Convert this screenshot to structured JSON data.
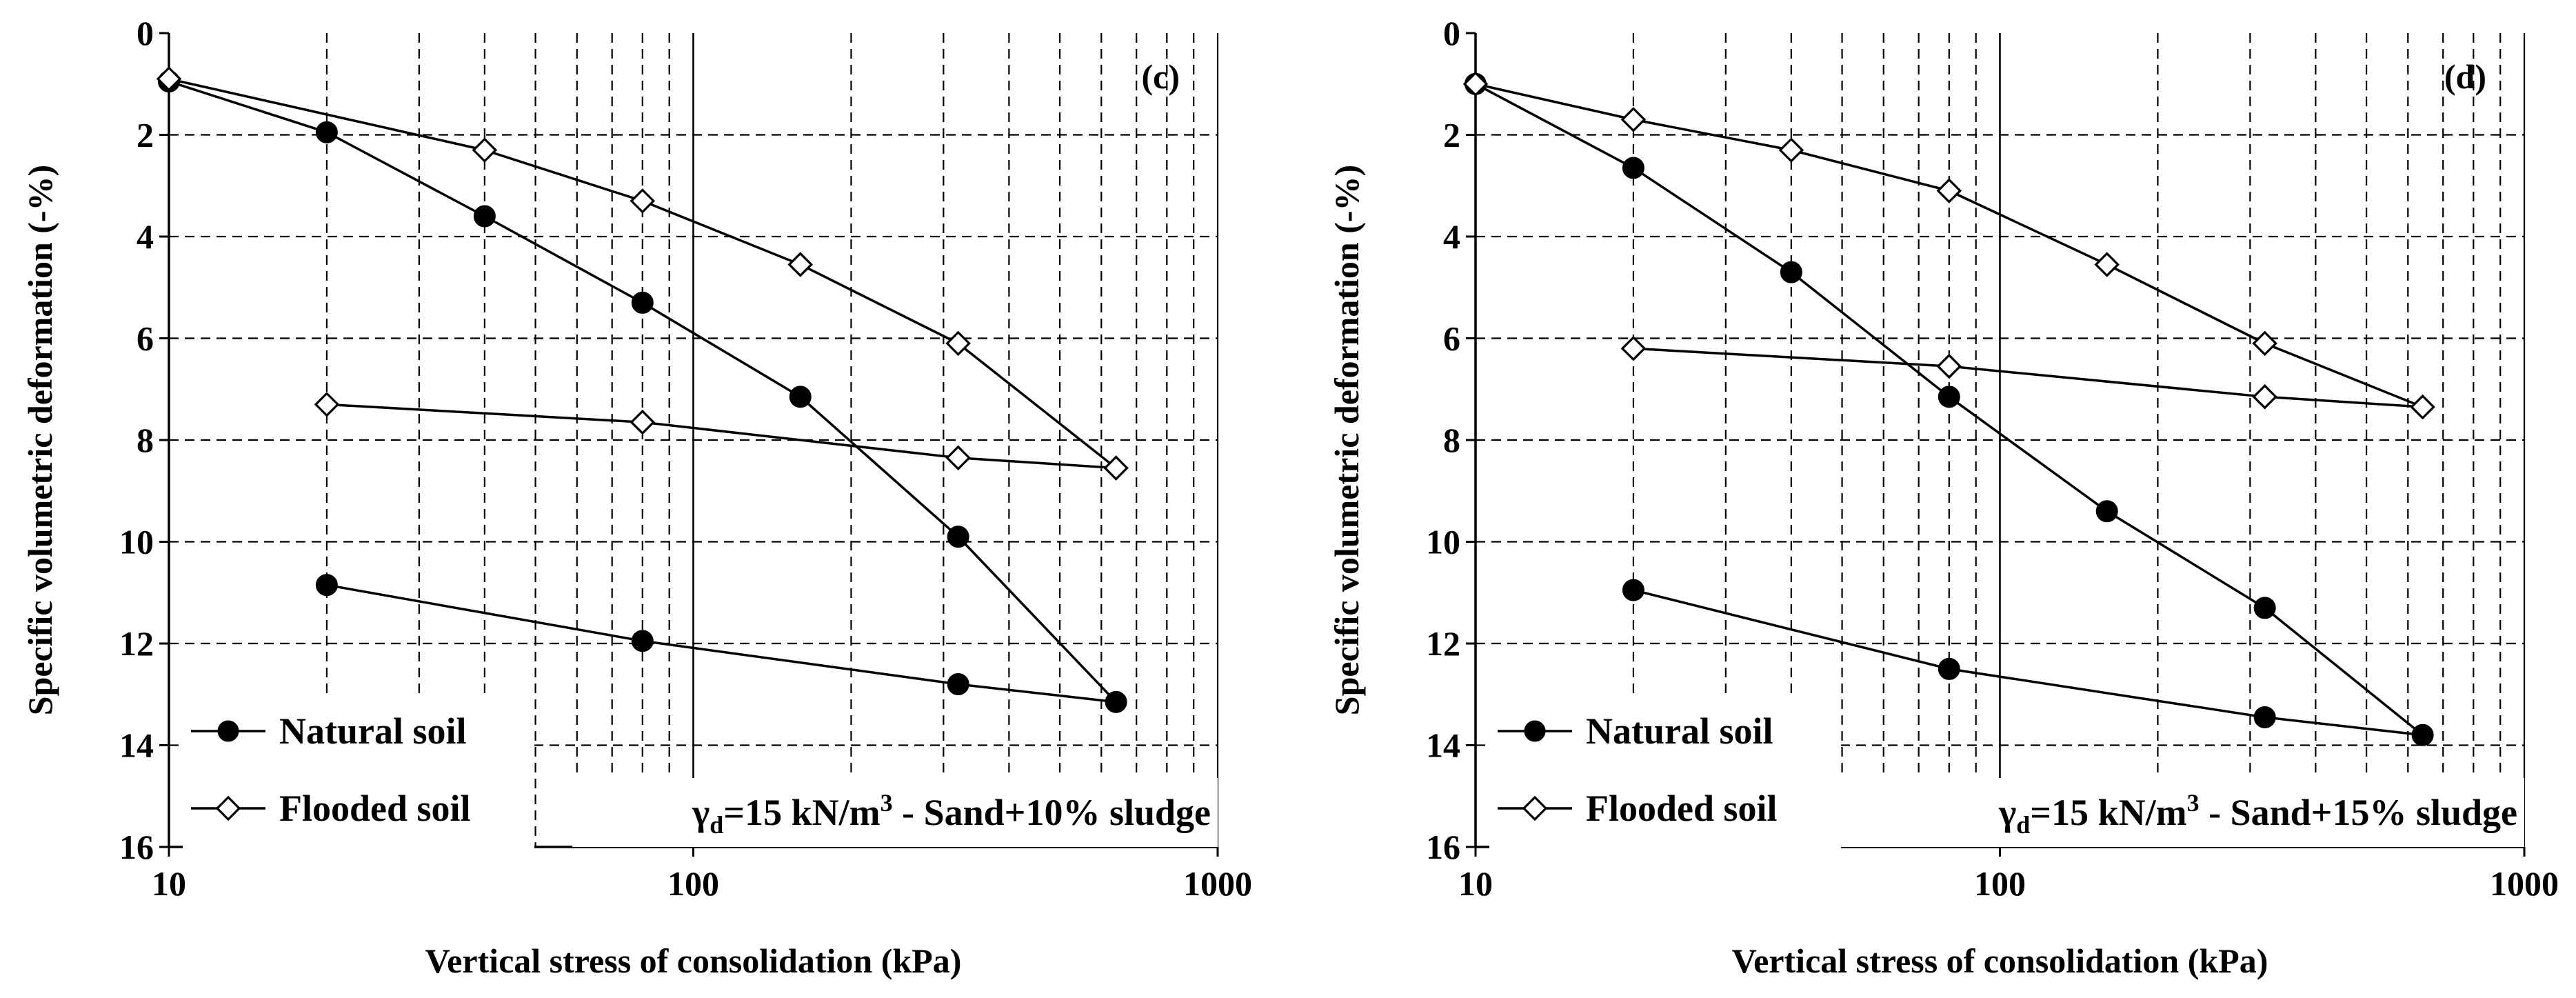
{
  "chart_data": [
    {
      "type": "line",
      "panel_label": "(c)",
      "annotation": {
        "gamma": "γ",
        "sub": "d",
        "pre": "=15 kN/m",
        "sup": "3",
        "post": " - Sand+10% sludge"
      },
      "xscale": "log",
      "xlim": [
        10,
        1000
      ],
      "ylim": [
        0,
        16
      ],
      "y_inverted": true,
      "xlabel": "Vertical stress of consolidation (kPa)",
      "ylabel": "Specific volumetric deformation (-%)",
      "x_ticks": [
        "10",
        "100",
        "1000"
      ],
      "y_ticks": [
        "0",
        "2",
        "4",
        "6",
        "8",
        "10",
        "12",
        "14",
        "16"
      ],
      "legend": [
        "Natural soil",
        "Flooded soil"
      ],
      "series": [
        {
          "name": "Natural soil",
          "marker": "circle",
          "x": [
            10,
            20,
            40,
            80,
            160,
            320,
            640,
            320,
            80,
            20
          ],
          "y": [
            0.95,
            1.95,
            3.6,
            5.3,
            7.15,
            9.9,
            13.15,
            12.8,
            11.95,
            10.85
          ]
        },
        {
          "name": "Flooded soil",
          "marker": "diamond",
          "x": [
            10,
            40,
            80,
            160,
            320,
            640,
            320,
            80,
            20
          ],
          "y": [
            0.9,
            2.3,
            3.3,
            4.55,
            6.1,
            8.55,
            8.35,
            7.65,
            7.3
          ]
        }
      ]
    },
    {
      "type": "line",
      "panel_label": "(d)",
      "annotation": {
        "gamma": "γ",
        "sub": "d",
        "pre": "=15 kN/m",
        "sup": "3",
        "post": " - Sand+15% sludge"
      },
      "xscale": "log",
      "xlim": [
        10,
        1000
      ],
      "ylim": [
        0,
        16
      ],
      "y_inverted": true,
      "xlabel": "Vertical stress of consolidation (kPa)",
      "ylabel": "Specific volumetric deformation (-%)",
      "x_ticks": [
        "10",
        "100",
        "1000"
      ],
      "y_ticks": [
        "0",
        "2",
        "4",
        "6",
        "8",
        "10",
        "12",
        "14",
        "16"
      ],
      "legend": [
        "Natural soil",
        "Flooded soil"
      ],
      "series": [
        {
          "name": "Natural soil",
          "marker": "circle",
          "x": [
            10,
            20,
            40,
            80,
            160,
            320,
            640,
            320,
            80,
            20
          ],
          "y": [
            1.0,
            2.65,
            4.7,
            7.15,
            9.4,
            11.3,
            13.8,
            13.45,
            12.5,
            10.95
          ]
        },
        {
          "name": "Flooded soil",
          "marker": "diamond",
          "x": [
            10,
            20,
            40,
            80,
            160,
            320,
            640,
            320,
            80,
            20
          ],
          "y": [
            1.0,
            1.7,
            2.3,
            3.1,
            4.55,
            6.1,
            7.35,
            7.15,
            6.55,
            6.2
          ]
        }
      ]
    }
  ]
}
